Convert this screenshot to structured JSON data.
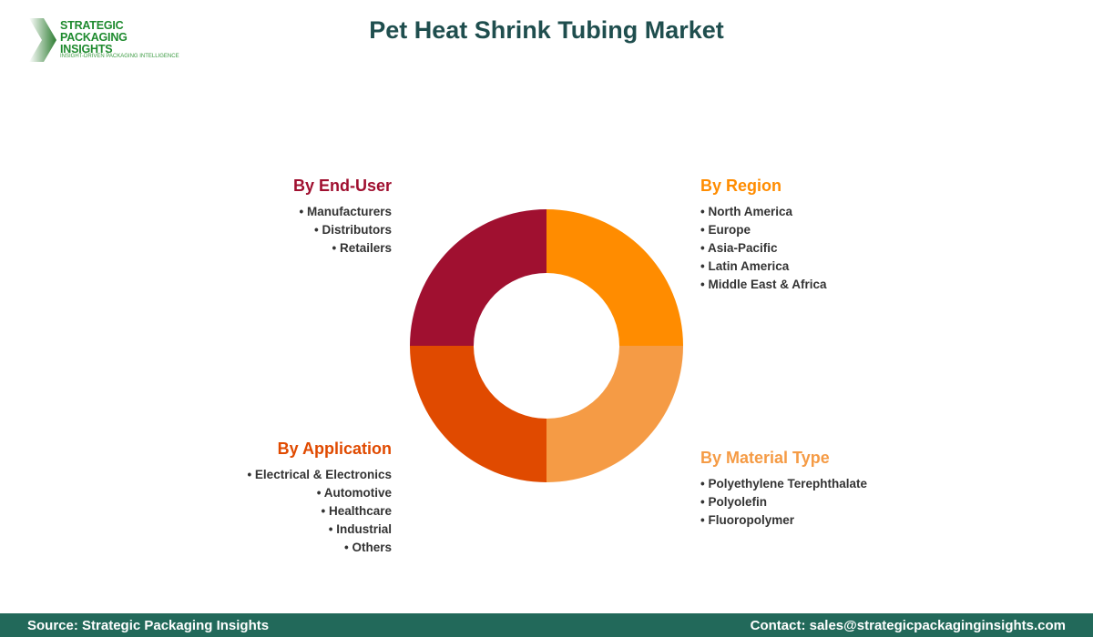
{
  "logo": {
    "line1": "STRATEGIC",
    "line2": "PACKAGING INSIGHTS",
    "tagline": "INSIGHT-DRIVEN PACKAGING INTELLIGENCE"
  },
  "title": "Pet Heat Shrink Tubing Market",
  "chart_data": {
    "type": "pie",
    "style": "donut",
    "categories": [
      "By Region",
      "By Material Type",
      "By Application",
      "By End-User"
    ],
    "values": [
      25,
      25,
      25,
      25
    ],
    "colors": [
      "#FF8C00",
      "#F59B45",
      "#E04A00",
      "#A01030"
    ]
  },
  "segments": {
    "region": {
      "title": "By Region",
      "color": "#FF8C00",
      "items": [
        "North America",
        "Europe",
        "Asia-Pacific",
        "Latin America",
        "Middle East & Africa"
      ]
    },
    "material": {
      "title": "By Material Type",
      "color": "#F59B45",
      "items": [
        "Polyethylene Terephthalate",
        "Polyolefin",
        "Fluoropolymer"
      ]
    },
    "application": {
      "title": "By Application",
      "color": "#E04A00",
      "items": [
        "Electrical & Electronics",
        "Automotive",
        "Healthcare",
        "Industrial",
        "Others"
      ]
    },
    "enduser": {
      "title": "By End-User",
      "color": "#A01030",
      "items": [
        "Manufacturers",
        "Distributors",
        "Retailers"
      ]
    }
  },
  "footer": {
    "source": "Source: Strategic Packaging Insights",
    "contact": "Contact: sales@strategicpackaginginsights.com"
  }
}
